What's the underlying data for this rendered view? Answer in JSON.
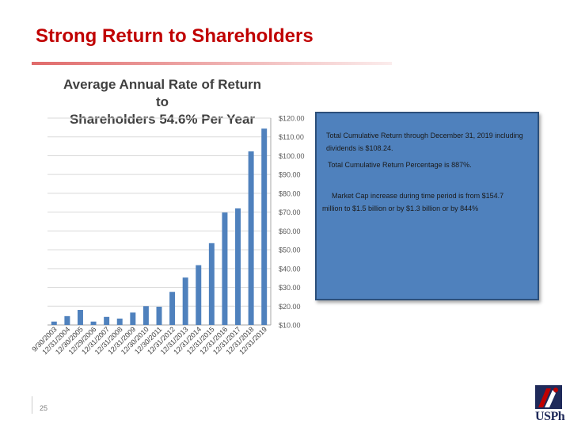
{
  "slide": {
    "title": "Strong Return to Shareholders",
    "page_number": "25"
  },
  "note_box": {
    "line1": "Total Cumulative Return through December 31, 2019 including dividends is $108.24.",
    "line2": "Total Cumulative Return Percentage is 887%.",
    "line3": "Market Cap increase during time period is from $154.7 million to $1.5 billion or by $1.3 billion or by 844%"
  },
  "logo": {
    "text": "USPh"
  },
  "colors": {
    "title_red": "#c00000",
    "bar_blue": "#4f81bd",
    "box_blue": "#4f81bd"
  },
  "chart_data": {
    "type": "bar",
    "title": "Average Annual Rate of Return to Shareholders 54.6% Per Year",
    "title_lines": [
      "Average Annual Rate of Return to",
      "Shareholders 54.6% Per Year"
    ],
    "categories": [
      "9/30/2003",
      "12/31/2004",
      "12/30/2005",
      "12/29/2006",
      "12/31/2007",
      "12/31/2008",
      "12/31/2009",
      "12/30/2010",
      "12/30/2011",
      "12/31/2012",
      "12/31/2013",
      "12/31/2014",
      "12/31/2015",
      "12/31/2016",
      "12/31/2017",
      "12/31/2018",
      "12/31/2019"
    ],
    "values": [
      11.8,
      14.7,
      18.0,
      11.8,
      14.3,
      13.4,
      16.6,
      20.0,
      19.7,
      27.6,
      35.2,
      41.8,
      53.5,
      69.8,
      72.0,
      102.3,
      114.4
    ],
    "ylim": [
      10,
      120
    ],
    "yticks": [
      "$10.00",
      "$20.00",
      "$30.00",
      "$40.00",
      "$50.00",
      "$60.00",
      "$70.00",
      "$80.00",
      "$90.00",
      "$100.00",
      "$110.00",
      "$120.00"
    ],
    "ytick_values": [
      10,
      20,
      30,
      40,
      50,
      60,
      70,
      80,
      90,
      100,
      110,
      120
    ],
    "y_axis_side": "right",
    "grid": true,
    "xlabel": "",
    "ylabel": ""
  }
}
